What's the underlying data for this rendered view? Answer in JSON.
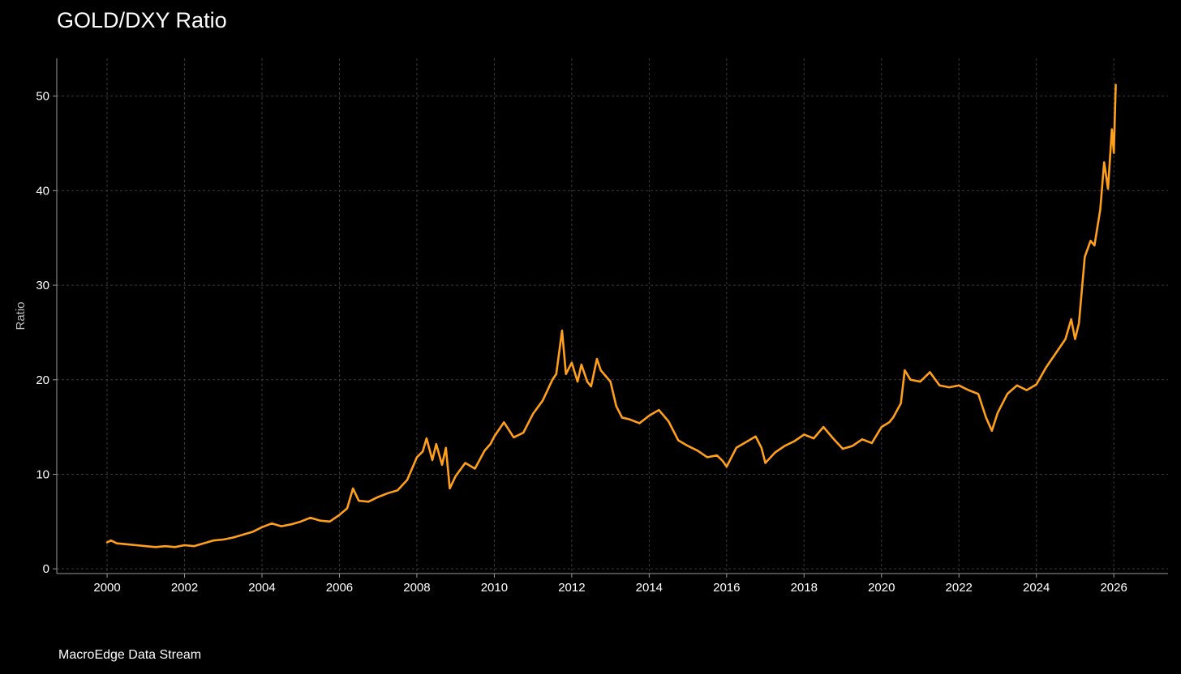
{
  "colors": {
    "background": "#000000",
    "line": "#FF9F1C",
    "grid": "#3a3a3a",
    "axis": "#9a9a9a",
    "text": "#ffffff"
  },
  "footer": {
    "source": "MacroEdge Data Stream"
  },
  "chart_data": {
    "type": "line",
    "title": "GOLD/DXY Ratio",
    "xlabel": "",
    "ylabel": "Ratio",
    "xlim": [
      1998.7,
      2027.4
    ],
    "ylim": [
      -0.5,
      54
    ],
    "xticks": [
      2000,
      2002,
      2004,
      2006,
      2008,
      2010,
      2012,
      2014,
      2016,
      2018,
      2020,
      2022,
      2024,
      2026
    ],
    "yticks": [
      0,
      10,
      20,
      30,
      40,
      50
    ],
    "grid": true,
    "legend": "none",
    "series": [
      {
        "x": [
          2000.0,
          2000.1,
          2000.25,
          2000.5,
          2000.75,
          2001.0,
          2001.25,
          2001.5,
          2001.75,
          2002.0,
          2002.25,
          2002.5,
          2002.75,
          2003.0,
          2003.25,
          2003.5,
          2003.75,
          2004.0,
          2004.25,
          2004.5,
          2004.75,
          2005.0,
          2005.25,
          2005.5,
          2005.75,
          2006.0,
          2006.2,
          2006.35,
          2006.5,
          2006.75,
          2007.0,
          2007.25,
          2007.5,
          2007.75,
          2008.0,
          2008.15,
          2008.25,
          2008.4,
          2008.5,
          2008.65,
          2008.75,
          2008.85,
          2009.0,
          2009.25,
          2009.5,
          2009.75,
          2009.9,
          2010.0,
          2010.25,
          2010.5,
          2010.75,
          2011.0,
          2011.25,
          2011.5,
          2011.6,
          2011.75,
          2011.85,
          2012.0,
          2012.15,
          2012.25,
          2012.4,
          2012.5,
          2012.65,
          2012.75,
          2013.0,
          2013.15,
          2013.3,
          2013.5,
          2013.75,
          2014.0,
          2014.25,
          2014.5,
          2014.75,
          2015.0,
          2015.25,
          2015.5,
          2015.75,
          2015.9,
          2016.0,
          2016.25,
          2016.5,
          2016.75,
          2016.9,
          2017.0,
          2017.25,
          2017.5,
          2017.75,
          2018.0,
          2018.25,
          2018.5,
          2018.75,
          2019.0,
          2019.25,
          2019.5,
          2019.75,
          2020.0,
          2020.2,
          2020.3,
          2020.5,
          2020.6,
          2020.75,
          2021.0,
          2021.25,
          2021.5,
          2021.75,
          2022.0,
          2022.25,
          2022.5,
          2022.7,
          2022.85,
          2023.0,
          2023.25,
          2023.5,
          2023.75,
          2024.0,
          2024.25,
          2024.5,
          2024.75,
          2024.9,
          2025.0,
          2025.1,
          2025.25,
          2025.4,
          2025.5,
          2025.65,
          2025.75,
          2025.85,
          2025.95,
          2026.0,
          2026.05
        ],
        "y": [
          2.8,
          3.0,
          2.7,
          2.6,
          2.5,
          2.4,
          2.3,
          2.4,
          2.3,
          2.5,
          2.4,
          2.7,
          3.0,
          3.1,
          3.3,
          3.6,
          3.9,
          4.4,
          4.8,
          4.5,
          4.7,
          5.0,
          5.4,
          5.1,
          5.0,
          5.7,
          6.4,
          8.5,
          7.2,
          7.1,
          7.6,
          8.0,
          8.3,
          9.4,
          11.8,
          12.4,
          13.8,
          11.5,
          13.2,
          11.0,
          12.8,
          8.5,
          9.8,
          11.2,
          10.6,
          12.5,
          13.2,
          14.0,
          15.5,
          13.9,
          14.4,
          16.4,
          17.8,
          20.0,
          20.6,
          25.2,
          20.6,
          21.8,
          19.8,
          21.6,
          19.8,
          19.3,
          22.2,
          21.0,
          19.8,
          17.2,
          16.0,
          15.8,
          15.4,
          16.2,
          16.8,
          15.6,
          13.6,
          13.0,
          12.5,
          11.8,
          12.0,
          11.4,
          10.8,
          12.8,
          13.4,
          14.0,
          12.8,
          11.2,
          12.3,
          13.0,
          13.5,
          14.2,
          13.8,
          15.0,
          13.8,
          12.7,
          13.0,
          13.7,
          13.3,
          15.0,
          15.5,
          16.0,
          17.5,
          21.0,
          20.0,
          19.8,
          20.8,
          19.4,
          19.2,
          19.4,
          18.9,
          18.5,
          16.0,
          14.6,
          16.5,
          18.5,
          19.4,
          18.9,
          19.5,
          21.3,
          22.8,
          24.3,
          26.4,
          24.3,
          26.0,
          33.0,
          34.7,
          34.2,
          38.0,
          43.0,
          40.2,
          46.5,
          44.0,
          51.2
        ]
      }
    ]
  }
}
